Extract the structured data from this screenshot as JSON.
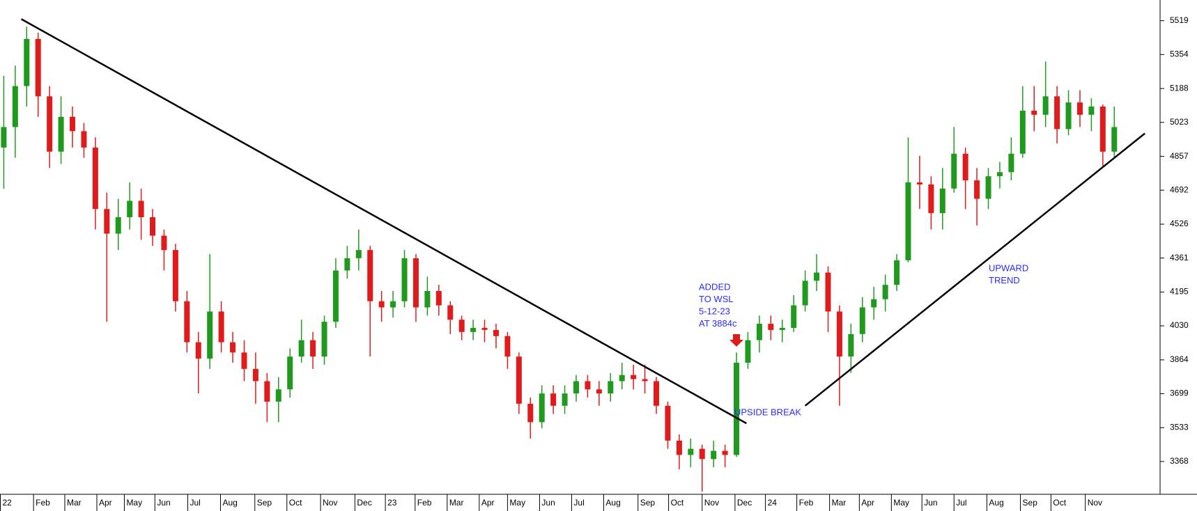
{
  "chart_data": {
    "type": "candlestick",
    "up_color": "#1f9a1f",
    "down_color": "#e01b1b",
    "line_color": "#000000",
    "xlim": [
      -0.33,
      101
    ],
    "ylim": [
      3208,
      5620
    ],
    "yticks": [
      5519,
      5354,
      5188,
      5023,
      4857,
      4692,
      4526,
      4361,
      4195,
      4030,
      3864,
      3699,
      3533,
      3368
    ],
    "xticks": [
      {
        "value": -0.33,
        "label": "22"
      },
      {
        "value": 2.6,
        "label": "Feb"
      },
      {
        "value": 5.33,
        "label": "Mar"
      },
      {
        "value": 8.13,
        "label": "Apr"
      },
      {
        "value": 10.53,
        "label": "May"
      },
      {
        "value": 13.2,
        "label": "Jun"
      },
      {
        "value": 16.07,
        "label": "Jul"
      },
      {
        "value": 18.93,
        "label": "Aug"
      },
      {
        "value": 21.93,
        "label": "Sep"
      },
      {
        "value": 24.73,
        "label": "Oct"
      },
      {
        "value": 27.67,
        "label": "Nov"
      },
      {
        "value": 30.67,
        "label": "Dec"
      },
      {
        "value": 33.33,
        "label": "23"
      },
      {
        "value": 35.93,
        "label": "Feb"
      },
      {
        "value": 38.73,
        "label": "Mar"
      },
      {
        "value": 41.53,
        "label": "Apr"
      },
      {
        "value": 44,
        "label": "May"
      },
      {
        "value": 46.8,
        "label": "Jun"
      },
      {
        "value": 49.6,
        "label": "Jul"
      },
      {
        "value": 52.4,
        "label": "Aug"
      },
      {
        "value": 55.4,
        "label": "Sep"
      },
      {
        "value": 58.07,
        "label": "Oct"
      },
      {
        "value": 61,
        "label": "Nov"
      },
      {
        "value": 63.87,
        "label": "Dec"
      },
      {
        "value": 66.53,
        "label": "24"
      },
      {
        "value": 69.27,
        "label": "Feb"
      },
      {
        "value": 72.13,
        "label": "Mar"
      },
      {
        "value": 74.73,
        "label": "Apr"
      },
      {
        "value": 77.53,
        "label": "May"
      },
      {
        "value": 80.2,
        "label": "Jun"
      },
      {
        "value": 83,
        "label": "Jul"
      },
      {
        "value": 85.87,
        "label": "Aug"
      },
      {
        "value": 88.8,
        "label": "Sep"
      },
      {
        "value": 91.47,
        "label": "Oct"
      },
      {
        "value": 94.47,
        "label": "Nov"
      }
    ],
    "candles": [
      [
        4900,
        5250,
        4700,
        5000
      ],
      [
        5000,
        5300,
        4850,
        5200
      ],
      [
        5200,
        5490,
        5100,
        5430
      ],
      [
        5430,
        5460,
        5050,
        5150
      ],
      [
        5150,
        5200,
        4800,
        4880
      ],
      [
        4880,
        5150,
        4820,
        5050
      ],
      [
        5050,
        5100,
        4900,
        4980
      ],
      [
        4980,
        5020,
        4850,
        4900
      ],
      [
        4900,
        4950,
        4500,
        4600
      ],
      [
        4600,
        4680,
        4050,
        4480
      ],
      [
        4480,
        4650,
        4400,
        4560
      ],
      [
        4560,
        4730,
        4500,
        4640
      ],
      [
        4640,
        4700,
        4450,
        4560
      ],
      [
        4560,
        4600,
        4420,
        4470
      ],
      [
        4470,
        4500,
        4300,
        4400
      ],
      [
        4400,
        4430,
        4100,
        4150
      ],
      [
        4150,
        4200,
        3900,
        3950
      ],
      [
        3950,
        4000,
        3700,
        3870
      ],
      [
        3870,
        4380,
        3820,
        4100
      ],
      [
        4100,
        4150,
        3900,
        3950
      ],
      [
        3950,
        4000,
        3850,
        3900
      ],
      [
        3900,
        3960,
        3760,
        3820
      ],
      [
        3820,
        3900,
        3650,
        3760
      ],
      [
        3760,
        3800,
        3560,
        3660
      ],
      [
        3660,
        3780,
        3560,
        3720
      ],
      [
        3720,
        3920,
        3680,
        3880
      ],
      [
        3880,
        4060,
        3850,
        3960
      ],
      [
        3960,
        4000,
        3820,
        3880
      ],
      [
        3880,
        4080,
        3840,
        4050
      ],
      [
        4050,
        4360,
        4020,
        4300
      ],
      [
        4300,
        4420,
        4260,
        4360
      ],
      [
        4360,
        4500,
        4300,
        4400
      ],
      [
        4400,
        4420,
        3880,
        4150
      ],
      [
        4150,
        4200,
        4050,
        4120
      ],
      [
        4120,
        4200,
        4070,
        4150
      ],
      [
        4150,
        4400,
        4120,
        4360
      ],
      [
        4360,
        4380,
        4050,
        4120
      ],
      [
        4120,
        4270,
        4080,
        4200
      ],
      [
        4200,
        4230,
        4080,
        4130
      ],
      [
        4130,
        4150,
        3990,
        4060
      ],
      [
        4060,
        4080,
        3960,
        4000
      ],
      [
        4000,
        4060,
        3960,
        4020
      ],
      [
        4020,
        4060,
        3950,
        4010
      ],
      [
        4010,
        4040,
        3920,
        3980
      ],
      [
        3980,
        4000,
        3820,
        3880
      ],
      [
        3880,
        3900,
        3600,
        3650
      ],
      [
        3650,
        3680,
        3480,
        3560
      ],
      [
        3560,
        3740,
        3530,
        3700
      ],
      [
        3700,
        3740,
        3600,
        3640
      ],
      [
        3640,
        3740,
        3600,
        3700
      ],
      [
        3700,
        3790,
        3660,
        3760
      ],
      [
        3760,
        3790,
        3680,
        3720
      ],
      [
        3720,
        3760,
        3640,
        3700
      ],
      [
        3700,
        3800,
        3660,
        3760
      ],
      [
        3760,
        3850,
        3720,
        3790
      ],
      [
        3790,
        3840,
        3720,
        3770
      ],
      [
        3770,
        3840,
        3700,
        3760
      ],
      [
        3760,
        3780,
        3600,
        3640
      ],
      [
        3640,
        3660,
        3430,
        3470
      ],
      [
        3470,
        3500,
        3330,
        3400
      ],
      [
        3400,
        3480,
        3340,
        3430
      ],
      [
        3430,
        3450,
        3220,
        3380
      ],
      [
        3380,
        3470,
        3340,
        3420
      ],
      [
        3420,
        3450,
        3340,
        3400
      ],
      [
        3400,
        3900,
        3390,
        3850
      ],
      [
        3850,
        4000,
        3820,
        3960
      ],
      [
        3960,
        4080,
        3900,
        4040
      ],
      [
        4040,
        4080,
        3960,
        4010
      ],
      [
        4010,
        4060,
        3950,
        4020
      ],
      [
        4020,
        4180,
        4000,
        4130
      ],
      [
        4130,
        4300,
        4100,
        4250
      ],
      [
        4250,
        4380,
        4200,
        4290
      ],
      [
        4290,
        4320,
        4000,
        4100
      ],
      [
        4100,
        4130,
        3640,
        3880
      ],
      [
        3880,
        4040,
        3800,
        3990
      ],
      [
        3990,
        4170,
        3950,
        4120
      ],
      [
        4120,
        4220,
        4060,
        4160
      ],
      [
        4160,
        4280,
        4100,
        4230
      ],
      [
        4230,
        4380,
        4200,
        4350
      ],
      [
        4350,
        4950,
        4340,
        4730
      ],
      [
        4730,
        4860,
        4600,
        4720
      ],
      [
        4720,
        4760,
        4500,
        4580
      ],
      [
        4580,
        4800,
        4500,
        4700
      ],
      [
        4700,
        5000,
        4680,
        4870
      ],
      [
        4870,
        4900,
        4600,
        4740
      ],
      [
        4740,
        4800,
        4520,
        4650
      ],
      [
        4650,
        4800,
        4600,
        4760
      ],
      [
        4760,
        4830,
        4700,
        4780
      ],
      [
        4780,
        4950,
        4740,
        4870
      ],
      [
        4870,
        5200,
        4850,
        5080
      ],
      [
        5080,
        5200,
        4980,
        5060
      ],
      [
        5060,
        5320,
        5000,
        5150
      ],
      [
        5150,
        5200,
        4920,
        4990
      ],
      [
        4990,
        5180,
        4960,
        5120
      ],
      [
        5120,
        5180,
        5000,
        5060
      ],
      [
        5060,
        5140,
        4980,
        5100
      ],
      [
        5100,
        5110,
        4800,
        4880
      ],
      [
        4880,
        5100,
        4850,
        5000
      ]
    ],
    "trendlines": [
      {
        "x": [
          1.53,
          64.87
        ],
        "y": [
          5527,
          3554
        ]
      },
      {
        "x": [
          70,
          99.67
        ],
        "y": [
          3640,
          4969
        ]
      }
    ],
    "annotations": [
      {
        "lines": [
          "ADDED",
          "TO WSL",
          "5-12-23",
          "AT 3884c"
        ]
      },
      {
        "lines": [
          "UPSIDE BREAK"
        ]
      },
      {
        "lines": [
          "UPWARD",
          "TREND"
        ]
      }
    ]
  }
}
